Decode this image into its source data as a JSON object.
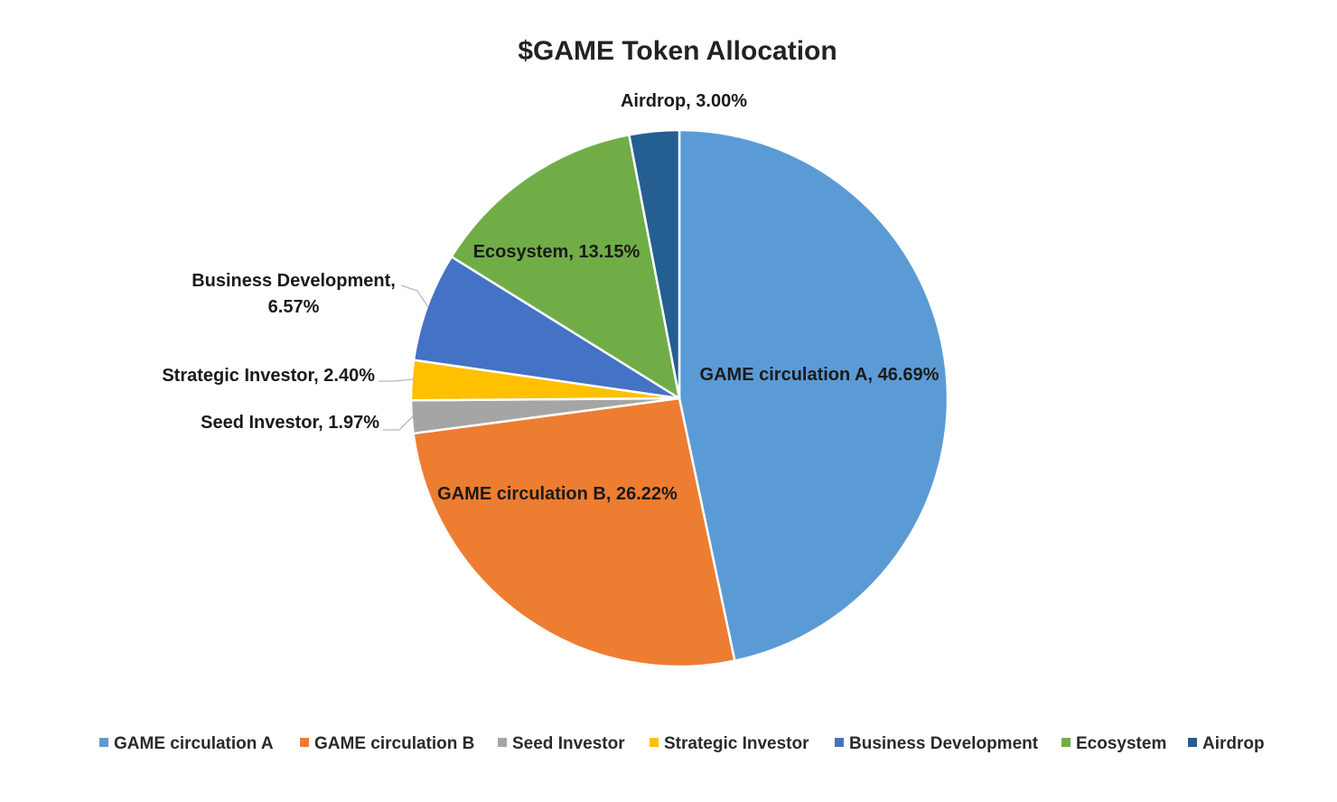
{
  "chart_data": {
    "type": "pie",
    "title": "$GAME Token Allocation",
    "categories": [
      "GAME circulation A",
      "GAME circulation B",
      "Seed Investor",
      "Strategic Investor",
      "Business Development",
      "Ecosystem",
      "Airdrop"
    ],
    "values": [
      46.69,
      26.22,
      1.97,
      2.4,
      6.57,
      13.15,
      3.0
    ],
    "value_unit": "%",
    "data_labels": [
      "GAME circulation A, 46.69%",
      "GAME circulation B, 26.22%",
      "Seed Investor, 1.97%",
      "Strategic Investor, 2.40%",
      [
        "Business Development,",
        "6.57%"
      ],
      "Ecosystem, 13.15%",
      "Airdrop, 3.00%"
    ],
    "colors": [
      "#5b9bd5",
      "#ed7d31",
      "#a5a5a5",
      "#ffc000",
      "#4472c4",
      "#70ad47",
      "#255e91"
    ],
    "start_angle_deg": 0,
    "direction": "clockwise",
    "legend": {
      "position": "bottom",
      "entries": [
        "GAME circulation A",
        "GAME circulation B",
        "Seed Investor",
        "Strategic Investor",
        "Business Development",
        "Ecosystem",
        "Airdrop"
      ]
    }
  }
}
